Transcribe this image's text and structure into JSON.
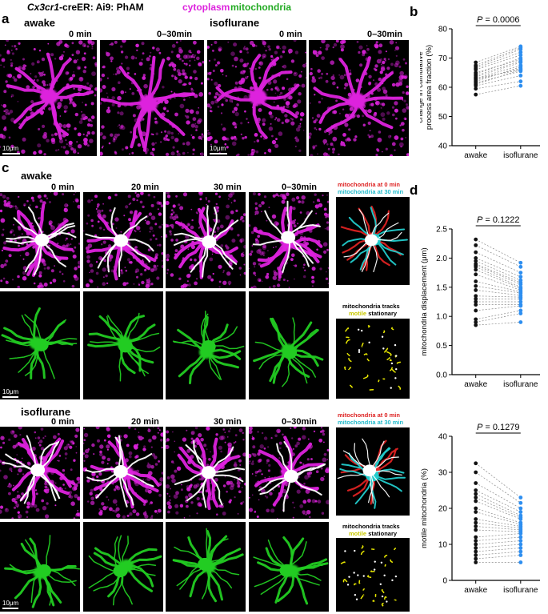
{
  "header": {
    "genotype_prefix": "Cx3cr1",
    "genotype_rest": "-creER: Ai9: PhAM",
    "cytoplasm": "cytoplasm",
    "mitochondria": "mitochondria"
  },
  "colors": {
    "magenta": "#dd22dd",
    "green": "#22cc22",
    "black_dots": "#111111",
    "blue_dots": "#2d8ef0",
    "red": "#dd2222",
    "cyan": "#22cccc",
    "yellow": "#e8e800"
  },
  "panel_labels": {
    "a": "a",
    "b": "b",
    "c": "c",
    "d": "d"
  },
  "panel_a": {
    "awake": "awake",
    "isoflurane": "isoflurane",
    "t0": "0 min",
    "t030": "0–30min",
    "scalebar": "10μm"
  },
  "panel_c": {
    "awake": "awake",
    "isoflurane": "isoflurane",
    "times": [
      "0 min",
      "20 min",
      "30 min",
      "0–30min"
    ],
    "scalebar": "10μm",
    "legend_mito0": "mitochondria at 0 min",
    "legend_mito30": "mitochondria at 30 min",
    "legend_tracks": "mitochondria tracks",
    "legend_motile": "motile",
    "legend_stationary": "stationary"
  },
  "chart_data": [
    {
      "type": "scatter",
      "panel": "b",
      "annotation": "P = 0.0006",
      "ylabel": "change in cumulative process area fraction (%)",
      "categories": [
        "awake",
        "isoflurane"
      ],
      "ylim": [
        40,
        80
      ],
      "yticks": [
        40,
        50,
        60,
        70,
        80
      ],
      "paired": true,
      "series": [
        {
          "name": "awake",
          "values": [
            57.5,
            59.5,
            60.5,
            61,
            61.5,
            62,
            62.5,
            63,
            63,
            63.5,
            64,
            64.5,
            65,
            66,
            66.5,
            67,
            67.5,
            68.5
          ]
        },
        {
          "name": "isoflurane",
          "values": [
            60.5,
            62,
            64,
            66,
            65.5,
            67,
            66.5,
            66,
            67.5,
            68.5,
            69,
            70,
            69.5,
            71,
            72,
            73,
            73.5,
            74
          ]
        }
      ]
    },
    {
      "type": "scatter",
      "panel": "d-top",
      "annotation": "P = 0.1222",
      "ylabel": "mitochondria displacement (μm)",
      "categories": [
        "awake",
        "isoflurane"
      ],
      "ylim": [
        0,
        2.5
      ],
      "yticks": [
        0.0,
        0.5,
        1.0,
        1.5,
        2.0,
        2.5
      ],
      "paired": true,
      "series": [
        {
          "name": "awake",
          "values": [
            2.32,
            2.22,
            2.1,
            2.0,
            1.95,
            1.9,
            1.88,
            1.85,
            1.8,
            1.72,
            1.6,
            1.52,
            1.45,
            1.35,
            1.3,
            1.25,
            1.2,
            1.1,
            0.95,
            0.9,
            0.85
          ]
        },
        {
          "name": "isoflurane",
          "values": [
            1.92,
            1.85,
            1.75,
            1.68,
            1.62,
            1.58,
            1.55,
            1.5,
            1.48,
            1.45,
            1.42,
            1.4,
            1.36,
            1.33,
            1.3,
            1.25,
            1.2,
            1.18,
            1.1,
            1.05,
            0.9
          ]
        }
      ]
    },
    {
      "type": "scatter",
      "panel": "d-bottom",
      "annotation": "P = 0.1279",
      "ylabel": "motile mitochondria (%)",
      "categories": [
        "awake",
        "isoflurane"
      ],
      "ylim": [
        0,
        40
      ],
      "yticks": [
        0,
        10,
        20,
        30,
        40
      ],
      "paired": true,
      "series": [
        {
          "name": "awake",
          "values": [
            32.5,
            30,
            27,
            25,
            24,
            23,
            22,
            20,
            19,
            17,
            16,
            15,
            14,
            12,
            11,
            10,
            9,
            8,
            7,
            6,
            5
          ]
        },
        {
          "name": "isoflurane",
          "values": [
            23,
            21.5,
            20,
            19,
            18,
            17.5,
            17,
            16,
            15.5,
            15,
            14.5,
            14,
            13.5,
            13,
            12,
            11,
            10,
            9,
            8,
            7,
            5
          ]
        }
      ]
    }
  ]
}
